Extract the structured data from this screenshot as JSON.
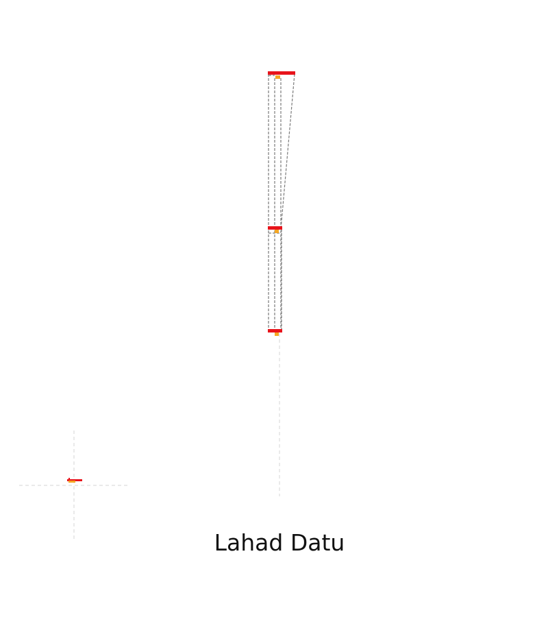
{
  "place_name": "Lahad Datu",
  "colors": {
    "marker_primary": "#e8141b",
    "marker_secondary": "#f5a623",
    "outline": "#7a7a7a",
    "guide": "#d6d6d6",
    "background": "#ffffff"
  }
}
